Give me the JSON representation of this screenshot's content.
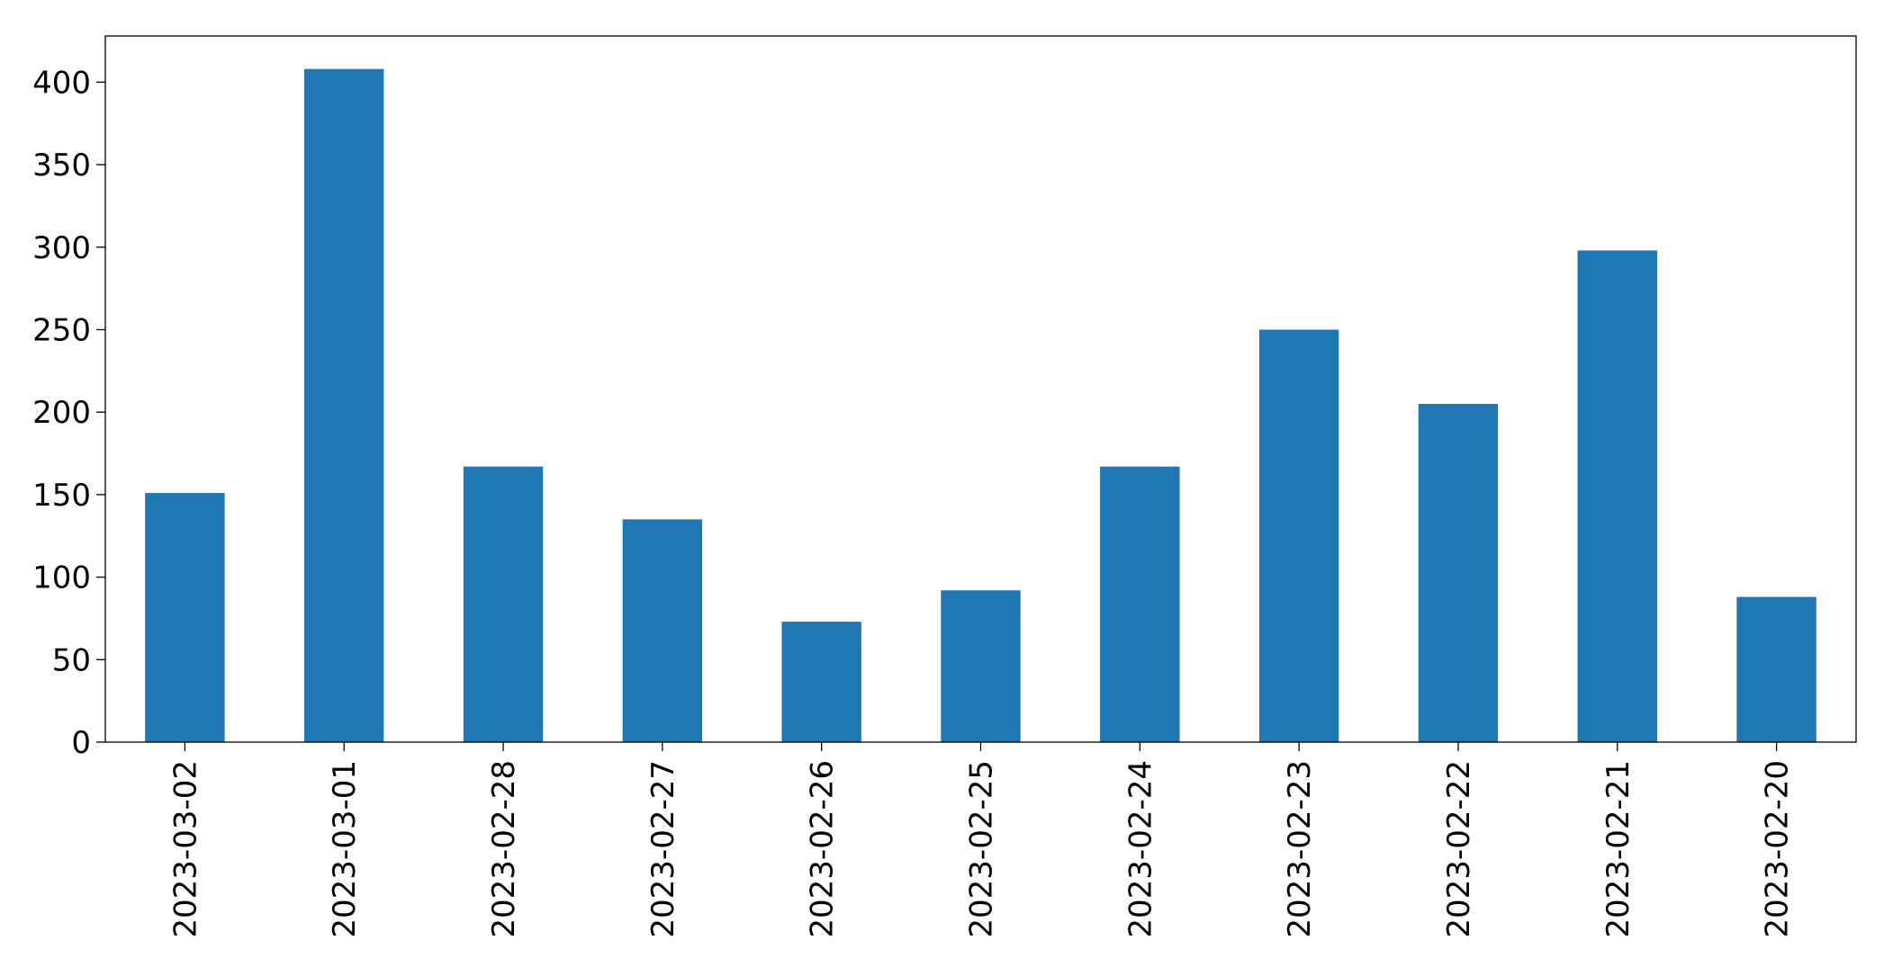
{
  "chart_data": {
    "type": "bar",
    "title": "",
    "xlabel": "",
    "ylabel": "",
    "categories": [
      "2023-03-02",
      "2023-03-01",
      "2023-02-28",
      "2023-02-27",
      "2023-02-26",
      "2023-02-25",
      "2023-02-24",
      "2023-02-23",
      "2023-02-22",
      "2023-02-21",
      "2023-02-20"
    ],
    "values": [
      151,
      408,
      167,
      135,
      73,
      92,
      167,
      250,
      205,
      298,
      88
    ],
    "ylim": [
      0,
      428
    ],
    "yticks": [
      0,
      50,
      100,
      150,
      200,
      250,
      300,
      350,
      400
    ],
    "grid": false,
    "legend": "none",
    "bar_color": "#1f77b4"
  }
}
